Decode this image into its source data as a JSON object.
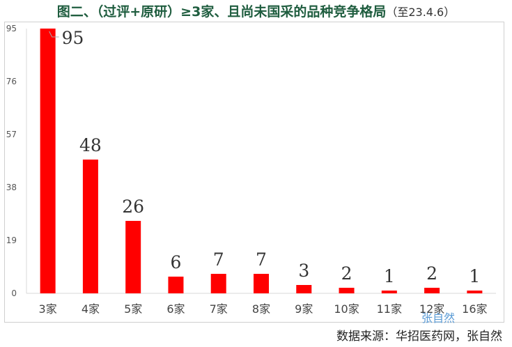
{
  "title": {
    "main": "图二、（过评+原研）≥3家、且尚未国采的品种竞争格局",
    "suffix": "（至23.4.6）"
  },
  "source": "数据来源：华招医药网，张自然",
  "watermark": "张自然",
  "colors": {
    "bar": "#ff0000",
    "title": "#1f5d3f",
    "axis": "#d9d9d9"
  },
  "chart_data": {
    "type": "bar",
    "categories": [
      "3家",
      "4家",
      "5家",
      "6家",
      "7家",
      "8家",
      "9家",
      "10家",
      "11家",
      "12家",
      "16家"
    ],
    "values": [
      95,
      48,
      26,
      6,
      7,
      7,
      3,
      2,
      1,
      2,
      1
    ],
    "data_labels": [
      "95",
      "48",
      "26",
      "6",
      "7",
      "7",
      "3",
      "2",
      "1",
      "2",
      "1"
    ],
    "yticks": [
      0,
      19,
      38,
      57,
      76,
      95
    ],
    "ylim": [
      0,
      95
    ],
    "grid": false,
    "legend": "none"
  }
}
